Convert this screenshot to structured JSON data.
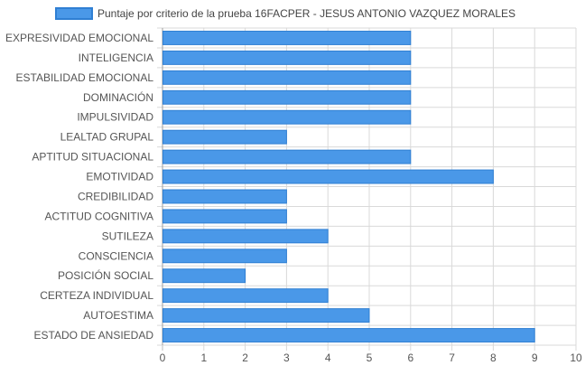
{
  "chart_data": {
    "type": "bar",
    "orientation": "horizontal",
    "legend_position": "top-center",
    "grid": true,
    "xlim": [
      0,
      10
    ],
    "x_ticks": [
      "0",
      "1",
      "2",
      "3",
      "4",
      "5",
      "6",
      "7",
      "8",
      "9",
      "10"
    ],
    "categories": [
      "EXPRESIVIDAD EMOCIONAL",
      "INTELIGENCIA",
      "ESTABILIDAD EMOCIONAL",
      "DOMINACIÓN",
      "IMPULSIVIDAD",
      "LEALTAD GRUPAL",
      "APTITUD SITUACIONAL",
      "EMOTIVIDAD",
      "CREDIBILIDAD",
      "ACTITUD COGNITIVA",
      "SUTILEZA",
      "CONSCIENCIA",
      "POSICIÓN SOCIAL",
      "CERTEZA INDIVIDUAL",
      "AUTOESTIMA",
      "ESTADO DE ANSIEDAD"
    ],
    "series": [
      {
        "name": "Puntaje por criterio de la prueba 16FACPER - JESUS ANTONIO VAZQUEZ MORALES",
        "values": [
          6,
          6,
          6,
          6,
          6,
          3,
          6,
          8,
          3,
          3,
          4,
          3,
          2,
          4,
          5,
          9
        ]
      }
    ],
    "colors": {
      "bar_fill": "#4a98e8",
      "bar_stroke": "#2f7fd3",
      "grid": "#d9d9d9",
      "tick_text": "#555555",
      "legend_text": "#444444"
    }
  }
}
